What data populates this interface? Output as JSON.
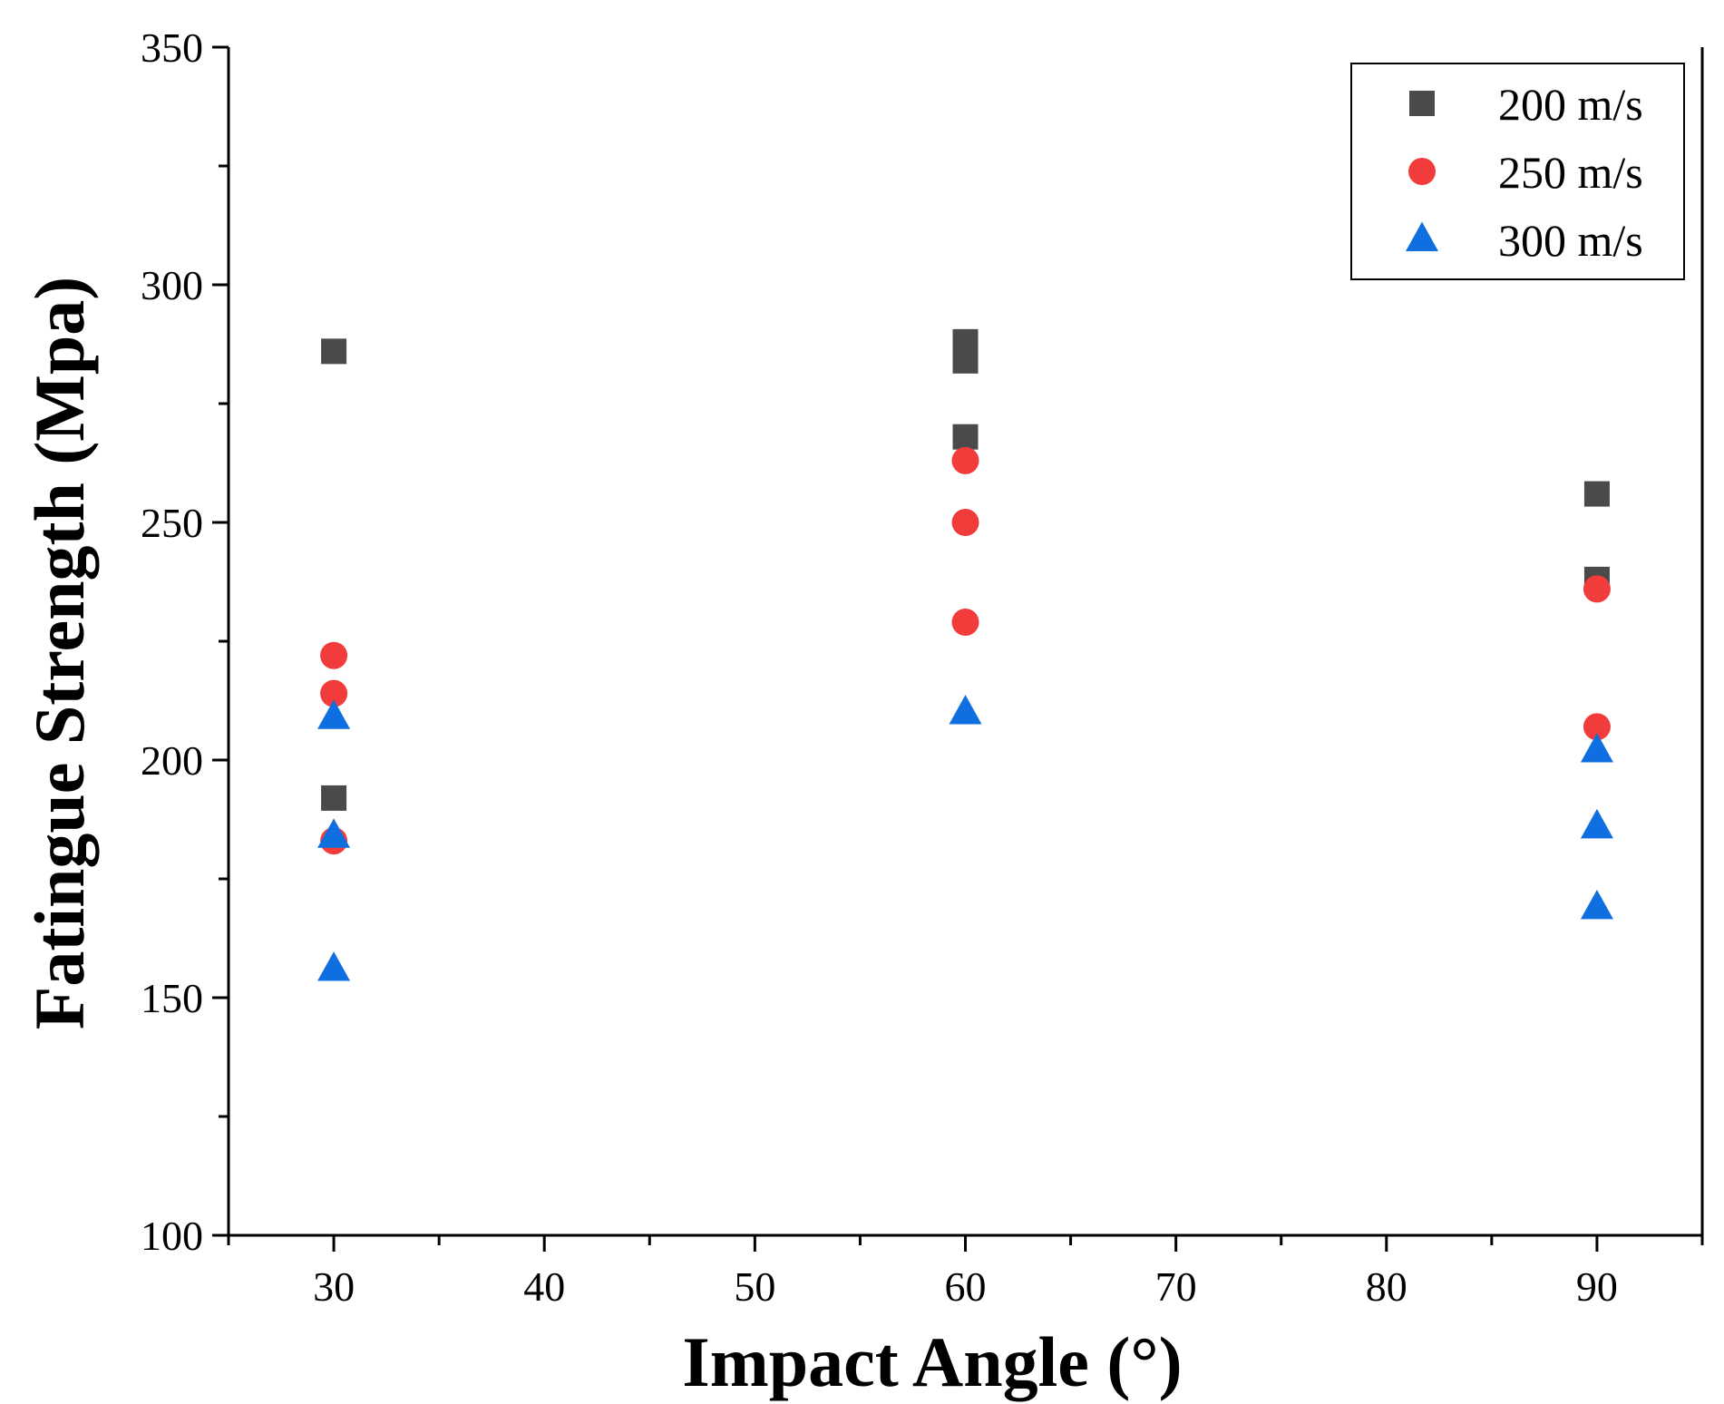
{
  "chart_data": {
    "type": "scatter",
    "title": "",
    "xlabel": "Impact Angle (°)",
    "ylabel": "Fatingue Strength (Mpa)",
    "xlim": [
      25,
      95
    ],
    "ylim": [
      100,
      350
    ],
    "x_ticks": [
      30,
      40,
      50,
      60,
      70,
      80,
      90
    ],
    "y_ticks": [
      100,
      150,
      200,
      250,
      300,
      350
    ],
    "legend_position": "top-right",
    "grid": false,
    "series": [
      {
        "name": "200 m/s",
        "marker": "square",
        "color": "#4a4a4a",
        "points": [
          {
            "x": 30,
            "y": 286
          },
          {
            "x": 30,
            "y": 192
          },
          {
            "x": 60,
            "y": 288
          },
          {
            "x": 60,
            "y": 284
          },
          {
            "x": 60,
            "y": 268
          },
          {
            "x": 90,
            "y": 256
          },
          {
            "x": 90,
            "y": 238
          }
        ]
      },
      {
        "name": "250 m/s",
        "marker": "circle",
        "color": "#f23c3c",
        "points": [
          {
            "x": 30,
            "y": 222
          },
          {
            "x": 30,
            "y": 214
          },
          {
            "x": 30,
            "y": 183
          },
          {
            "x": 60,
            "y": 263
          },
          {
            "x": 60,
            "y": 250
          },
          {
            "x": 60,
            "y": 229
          },
          {
            "x": 90,
            "y": 236
          },
          {
            "x": 90,
            "y": 207
          }
        ]
      },
      {
        "name": "300 m/s",
        "marker": "triangle",
        "color": "#0f6fe0",
        "points": [
          {
            "x": 30,
            "y": 209
          },
          {
            "x": 30,
            "y": 184
          },
          {
            "x": 30,
            "y": 156
          },
          {
            "x": 60,
            "y": 210
          },
          {
            "x": 90,
            "y": 202
          },
          {
            "x": 90,
            "y": 186
          },
          {
            "x": 90,
            "y": 169
          }
        ]
      }
    ]
  }
}
